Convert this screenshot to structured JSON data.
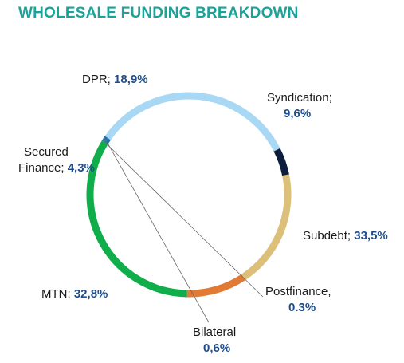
{
  "chart_data": {
    "type": "pie",
    "title": "WHOLESALE FUNDING BREAKDOWN",
    "series": [
      {
        "name": "DPR",
        "value": 18.9,
        "value_label": "18,9%",
        "color": "#dcc07a"
      },
      {
        "name": "Syndication",
        "value": 9.6,
        "value_label": "9,6%",
        "color": "#e07a35"
      },
      {
        "name": "Subdebt",
        "value": 33.5,
        "value_label": "33,5%",
        "color": "#0fae4a"
      },
      {
        "name": "Postfinance",
        "value": 0.3,
        "value_label": "0.3%",
        "color": "#1b8b8b"
      },
      {
        "name": "Bilateral",
        "value": 0.6,
        "value_label": "0,6%",
        "color": "#2173b8"
      },
      {
        "name": "MTN",
        "value": 32.8,
        "value_label": "32,8%",
        "color": "#a9d8f5"
      },
      {
        "name": "Secured Finance",
        "value": 4.3,
        "value_label": "4,3%",
        "color": "#0d1e3c"
      }
    ]
  }
}
